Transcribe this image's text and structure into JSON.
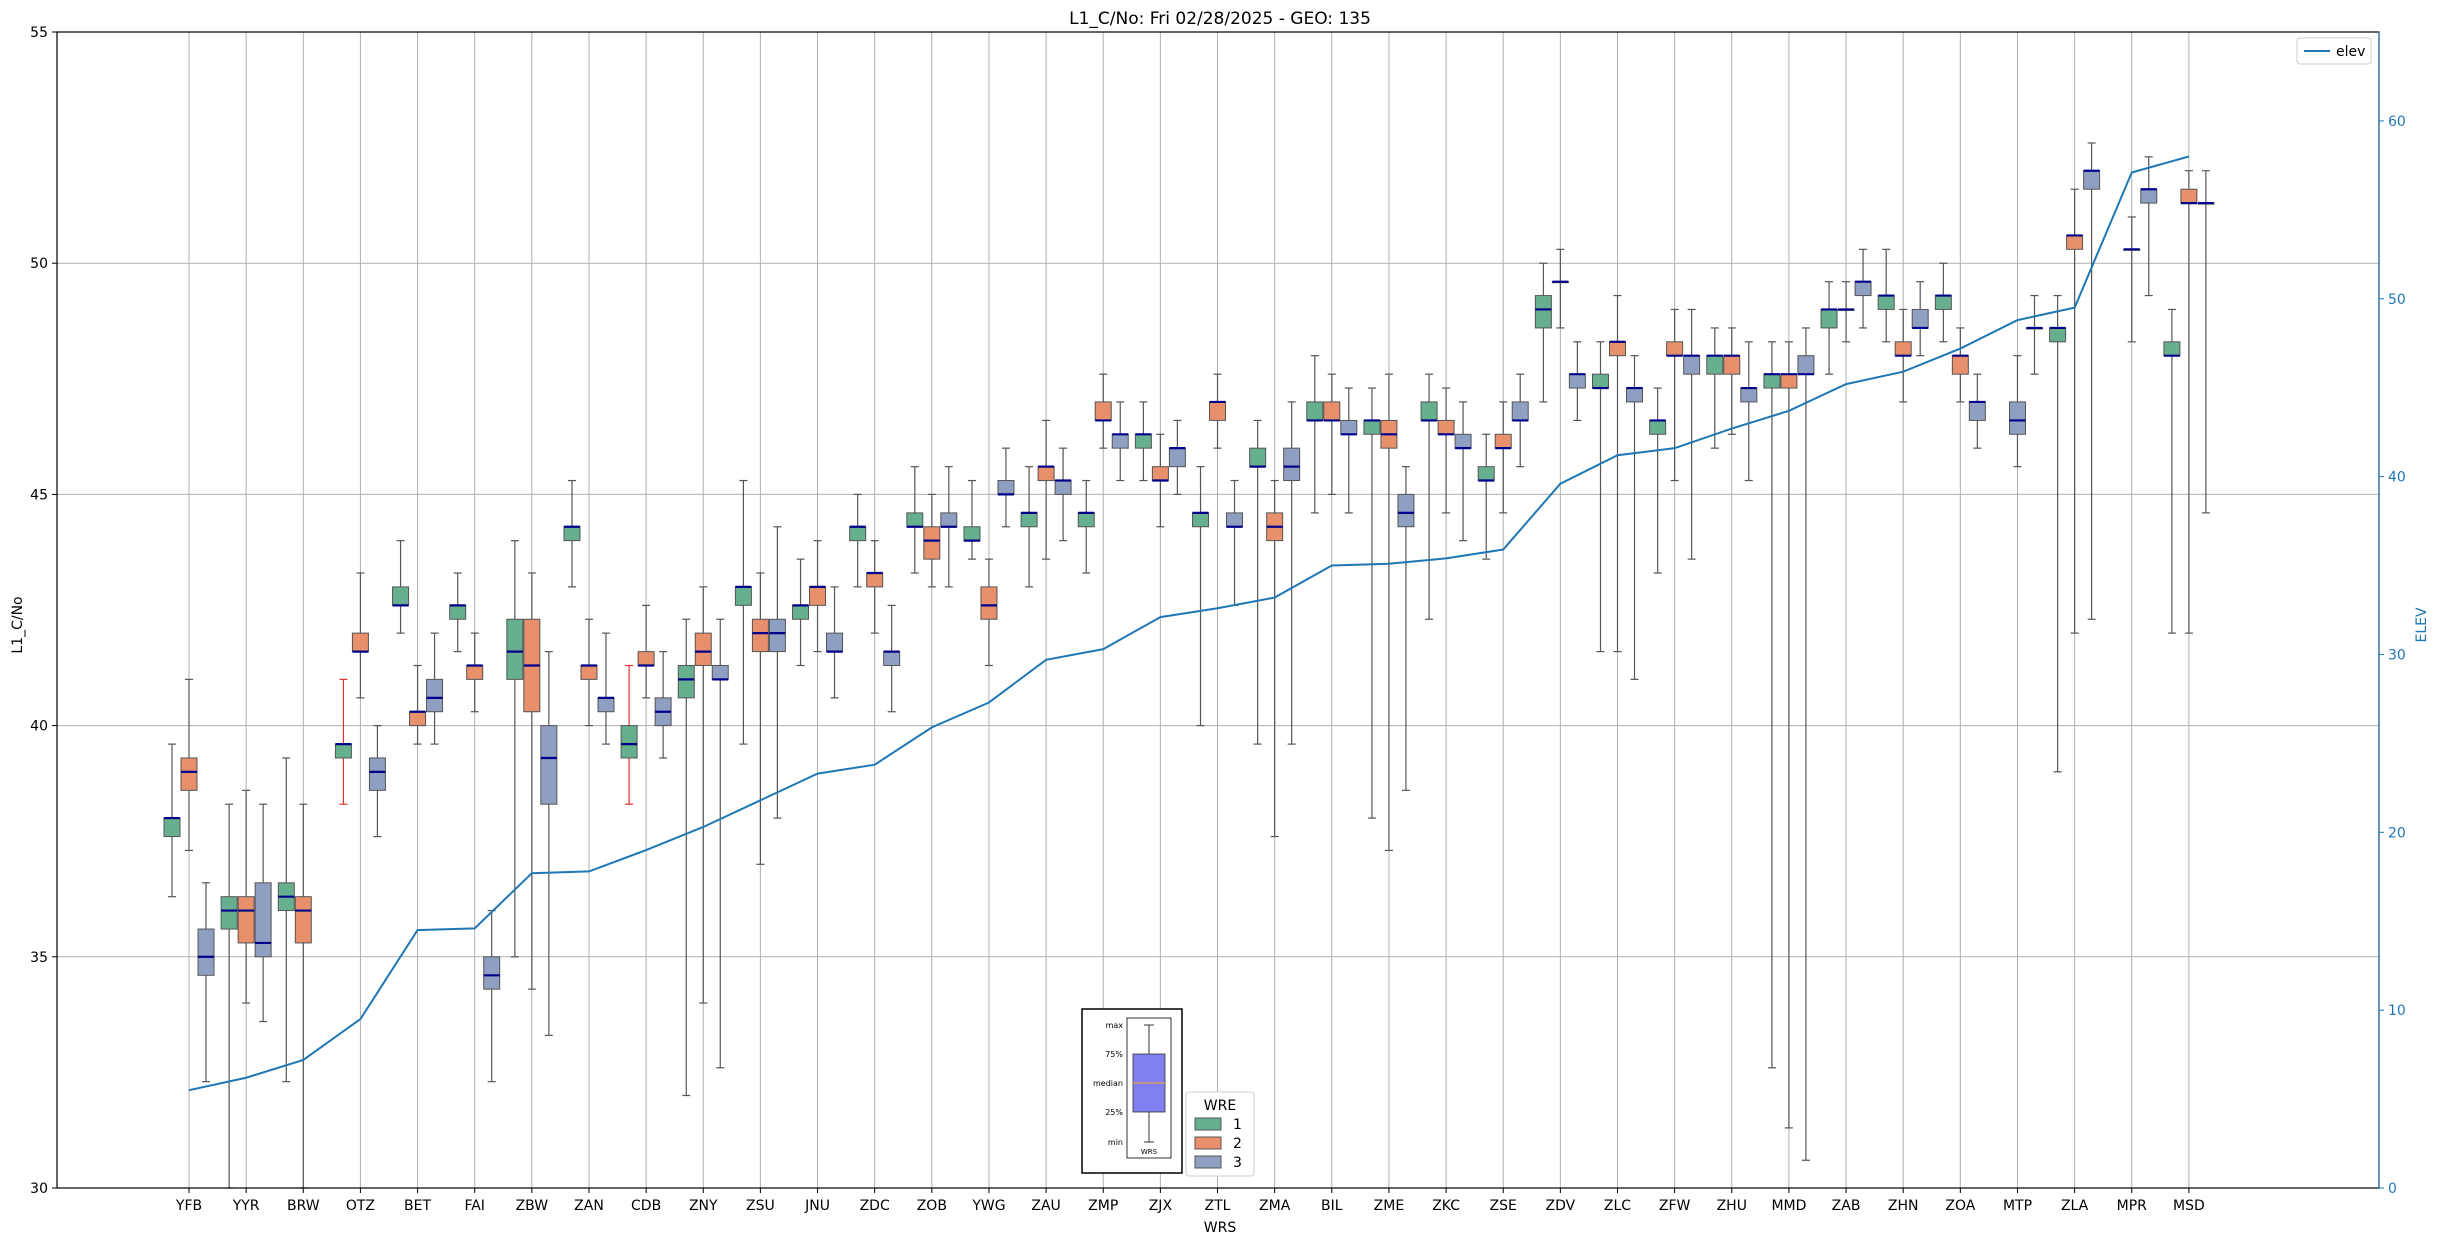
{
  "chart_data": {
    "type": "box",
    "title": "L1_C/No: Fri 02/28/2025 - GEO: 135",
    "xlabel": "WRS",
    "ylabel": "L1_C/No",
    "y2label": "ELEV",
    "ylim": [
      30,
      55
    ],
    "y2lim": [
      0,
      65
    ],
    "yticks": [
      30,
      35,
      40,
      45,
      50,
      55
    ],
    "y2ticks": [
      0,
      10,
      20,
      30,
      40,
      50,
      60
    ],
    "grid": true,
    "categories": [
      "YFB",
      "YYR",
      "BRW",
      "OTZ",
      "BET",
      "FAI",
      "ZBW",
      "ZAN",
      "CDB",
      "ZNY",
      "ZSU",
      "JNU",
      "ZDC",
      "ZOB",
      "YWG",
      "ZAU",
      "ZMP",
      "ZJX",
      "ZTL",
      "ZMA",
      "BIL",
      "ZME",
      "ZKC",
      "ZSE",
      "ZDV",
      "ZLC",
      "ZFW",
      "ZHU",
      "MMD",
      "ZAB",
      "ZHN",
      "ZOA",
      "MTP",
      "ZLA",
      "MPR",
      "MSD"
    ],
    "legend": {
      "title": "WRE",
      "placement": "bottom-center",
      "items": [
        {
          "label": "1",
          "color": "#66b08f"
        },
        {
          "label": "2",
          "color": "#e8906c"
        },
        {
          "label": "3",
          "color": "#8f9fc2"
        }
      ]
    },
    "elev_legend": {
      "label": "elev",
      "placement": "top-right",
      "color": "#1f77b4"
    },
    "key_box": {
      "labels": [
        "max",
        "75%",
        "median",
        "25%",
        "min"
      ],
      "xlabel": "WRS"
    },
    "elev_series": {
      "name": "elev",
      "values": [
        5.5,
        6.2,
        7.2,
        9.5,
        14.5,
        14.6,
        17.7,
        17.8,
        19.0,
        20.3,
        21.8,
        23.3,
        23.8,
        25.9,
        27.3,
        29.7,
        30.3,
        32.1,
        32.6,
        33.2,
        35.0,
        35.1,
        35.4,
        35.9,
        39.6,
        41.2,
        41.6,
        42.7,
        43.7,
        45.2,
        45.9,
        47.2,
        48.8,
        49.5,
        57.1,
        58.0
      ]
    },
    "boxes": [
      {
        "cat": "YFB",
        "wre": 1,
        "min": 36.3,
        "q1": 37.6,
        "med": 38.0,
        "q3": 38.0,
        "max": 39.6
      },
      {
        "cat": "YFB",
        "wre": 2,
        "min": 37.3,
        "q1": 38.6,
        "med": 39.0,
        "q3": 39.3,
        "max": 41.0
      },
      {
        "cat": "YFB",
        "wre": 3,
        "min": 32.3,
        "q1": 34.6,
        "med": 35.0,
        "q3": 35.6,
        "max": 36.6
      },
      {
        "cat": "YYR",
        "wre": 1,
        "min": 30.0,
        "q1": 35.6,
        "med": 36.0,
        "q3": 36.3,
        "max": 38.3
      },
      {
        "cat": "YYR",
        "wre": 2,
        "min": 34.0,
        "q1": 35.3,
        "med": 36.0,
        "q3": 36.3,
        "max": 38.6
      },
      {
        "cat": "YYR",
        "wre": 3,
        "min": 33.6,
        "q1": 35.0,
        "med": 35.3,
        "q3": 36.6,
        "max": 38.3
      },
      {
        "cat": "BRW",
        "wre": 1,
        "min": 32.3,
        "q1": 36.0,
        "med": 36.3,
        "q3": 36.6,
        "max": 39.3
      },
      {
        "cat": "BRW",
        "wre": 2,
        "min": 30.0,
        "q1": 35.3,
        "med": 36.0,
        "q3": 36.3,
        "max": 38.3
      },
      {
        "cat": "OTZ",
        "wre": 1,
        "min": 38.3,
        "q1": 39.3,
        "med": 39.6,
        "q3": 39.6,
        "max": 41.0,
        "whisker": "red"
      },
      {
        "cat": "OTZ",
        "wre": 2,
        "min": 40.6,
        "q1": 41.6,
        "med": 41.6,
        "q3": 42.0,
        "max": 43.3
      },
      {
        "cat": "OTZ",
        "wre": 3,
        "min": 37.6,
        "q1": 38.6,
        "med": 39.0,
        "q3": 39.3,
        "max": 40.0
      },
      {
        "cat": "BET",
        "wre": 1,
        "min": 42.0,
        "q1": 42.6,
        "med": 42.6,
        "q3": 43.0,
        "max": 44.0
      },
      {
        "cat": "BET",
        "wre": 2,
        "min": 39.6,
        "q1": 40.0,
        "med": 40.3,
        "q3": 40.3,
        "max": 41.3
      },
      {
        "cat": "BET",
        "wre": 3,
        "min": 39.6,
        "q1": 40.3,
        "med": 40.6,
        "q3": 41.0,
        "max": 42.0
      },
      {
        "cat": "FAI",
        "wre": 1,
        "min": 41.6,
        "q1": 42.3,
        "med": 42.6,
        "q3": 42.6,
        "max": 43.3
      },
      {
        "cat": "FAI",
        "wre": 2,
        "min": 40.3,
        "q1": 41.0,
        "med": 41.3,
        "q3": 41.3,
        "max": 42.0
      },
      {
        "cat": "FAI",
        "wre": 3,
        "min": 32.3,
        "q1": 34.3,
        "med": 34.6,
        "q3": 35.0,
        "max": 36.0
      },
      {
        "cat": "ZBW",
        "wre": 1,
        "min": 35.0,
        "q1": 41.0,
        "med": 41.6,
        "q3": 42.3,
        "max": 44.0
      },
      {
        "cat": "ZBW",
        "wre": 2,
        "min": 34.3,
        "q1": 40.3,
        "med": 41.3,
        "q3": 42.3,
        "max": 43.3
      },
      {
        "cat": "ZBW",
        "wre": 3,
        "min": 33.3,
        "q1": 38.3,
        "med": 39.3,
        "q3": 40.0,
        "max": 41.6
      },
      {
        "cat": "ZAN",
        "wre": 1,
        "min": 43.0,
        "q1": 44.0,
        "med": 44.3,
        "q3": 44.3,
        "max": 45.3
      },
      {
        "cat": "ZAN",
        "wre": 2,
        "min": 40.0,
        "q1": 41.0,
        "med": 41.3,
        "q3": 41.3,
        "max": 42.3
      },
      {
        "cat": "ZAN",
        "wre": 3,
        "min": 39.6,
        "q1": 40.3,
        "med": 40.6,
        "q3": 40.6,
        "max": 42.0
      },
      {
        "cat": "CDB",
        "wre": 1,
        "min": 38.3,
        "q1": 39.3,
        "med": 39.6,
        "q3": 40.0,
        "max": 41.3,
        "whisker": "red"
      },
      {
        "cat": "CDB",
        "wre": 2,
        "min": 40.6,
        "q1": 41.3,
        "med": 41.3,
        "q3": 41.6,
        "max": 42.6
      },
      {
        "cat": "CDB",
        "wre": 3,
        "min": 39.3,
        "q1": 40.0,
        "med": 40.3,
        "q3": 40.6,
        "max": 41.6
      },
      {
        "cat": "ZNY",
        "wre": 1,
        "min": 32.0,
        "q1": 40.6,
        "med": 41.0,
        "q3": 41.3,
        "max": 42.3
      },
      {
        "cat": "ZNY",
        "wre": 2,
        "min": 34.0,
        "q1": 41.3,
        "med": 41.6,
        "q3": 42.0,
        "max": 43.0
      },
      {
        "cat": "ZNY",
        "wre": 3,
        "min": 32.6,
        "q1": 41.0,
        "med": 41.0,
        "q3": 41.3,
        "max": 42.3
      },
      {
        "cat": "ZSU",
        "wre": 1,
        "min": 39.6,
        "q1": 42.6,
        "med": 43.0,
        "q3": 43.0,
        "max": 45.3
      },
      {
        "cat": "ZSU",
        "wre": 2,
        "min": 37.0,
        "q1": 41.6,
        "med": 42.0,
        "q3": 42.3,
        "max": 43.3
      },
      {
        "cat": "ZSU",
        "wre": 3,
        "min": 38.0,
        "q1": 41.6,
        "med": 42.0,
        "q3": 42.3,
        "max": 44.3
      },
      {
        "cat": "JNU",
        "wre": 1,
        "min": 41.3,
        "q1": 42.3,
        "med": 42.6,
        "q3": 42.6,
        "max": 43.6
      },
      {
        "cat": "JNU",
        "wre": 2,
        "min": 41.6,
        "q1": 42.6,
        "med": 43.0,
        "q3": 43.0,
        "max": 44.0
      },
      {
        "cat": "JNU",
        "wre": 3,
        "min": 40.6,
        "q1": 41.6,
        "med": 41.6,
        "q3": 42.0,
        "max": 43.0
      },
      {
        "cat": "ZDC",
        "wre": 1,
        "min": 43.0,
        "q1": 44.0,
        "med": 44.3,
        "q3": 44.3,
        "max": 45.0
      },
      {
        "cat": "ZDC",
        "wre": 2,
        "min": 42.0,
        "q1": 43.0,
        "med": 43.3,
        "q3": 43.3,
        "max": 44.0
      },
      {
        "cat": "ZDC",
        "wre": 3,
        "min": 40.3,
        "q1": 41.3,
        "med": 41.6,
        "q3": 41.6,
        "max": 42.6
      },
      {
        "cat": "ZOB",
        "wre": 1,
        "min": 43.3,
        "q1": 44.3,
        "med": 44.3,
        "q3": 44.6,
        "max": 45.6
      },
      {
        "cat": "ZOB",
        "wre": 2,
        "min": 43.0,
        "q1": 43.6,
        "med": 44.0,
        "q3": 44.3,
        "max": 45.0
      },
      {
        "cat": "ZOB",
        "wre": 3,
        "min": 43.0,
        "q1": 44.3,
        "med": 44.3,
        "q3": 44.6,
        "max": 45.6
      },
      {
        "cat": "YWG",
        "wre": 1,
        "min": 43.6,
        "q1": 44.0,
        "med": 44.0,
        "q3": 44.3,
        "max": 45.3
      },
      {
        "cat": "YWG",
        "wre": 2,
        "min": 41.3,
        "q1": 42.3,
        "med": 42.6,
        "q3": 43.0,
        "max": 43.6
      },
      {
        "cat": "YWG",
        "wre": 3,
        "min": 44.3,
        "q1": 45.0,
        "med": 45.0,
        "q3": 45.3,
        "max": 46.0
      },
      {
        "cat": "ZAU",
        "wre": 1,
        "min": 43.0,
        "q1": 44.3,
        "med": 44.6,
        "q3": 44.6,
        "max": 45.6
      },
      {
        "cat": "ZAU",
        "wre": 2,
        "min": 43.6,
        "q1": 45.3,
        "med": 45.6,
        "q3": 45.6,
        "max": 46.6
      },
      {
        "cat": "ZAU",
        "wre": 3,
        "min": 44.0,
        "q1": 45.0,
        "med": 45.3,
        "q3": 45.3,
        "max": 46.0
      },
      {
        "cat": "ZMP",
        "wre": 1,
        "min": 43.3,
        "q1": 44.3,
        "med": 44.6,
        "q3": 44.6,
        "max": 45.3
      },
      {
        "cat": "ZMP",
        "wre": 2,
        "min": 46.0,
        "q1": 46.6,
        "med": 46.6,
        "q3": 47.0,
        "max": 47.6
      },
      {
        "cat": "ZMP",
        "wre": 3,
        "min": 45.3,
        "q1": 46.0,
        "med": 46.3,
        "q3": 46.3,
        "max": 47.0
      },
      {
        "cat": "ZJX",
        "wre": 1,
        "min": 45.3,
        "q1": 46.0,
        "med": 46.3,
        "q3": 46.3,
        "max": 47.0
      },
      {
        "cat": "ZJX",
        "wre": 2,
        "min": 44.3,
        "q1": 45.3,
        "med": 45.3,
        "q3": 45.6,
        "max": 46.3
      },
      {
        "cat": "ZJX",
        "wre": 3,
        "min": 45.0,
        "q1": 45.6,
        "med": 46.0,
        "q3": 46.0,
        "max": 46.6
      },
      {
        "cat": "ZTL",
        "wre": 1,
        "min": 40.0,
        "q1": 44.3,
        "med": 44.6,
        "q3": 44.6,
        "max": 45.6
      },
      {
        "cat": "ZTL",
        "wre": 2,
        "min": 46.0,
        "q1": 46.6,
        "med": 47.0,
        "q3": 47.0,
        "max": 47.6
      },
      {
        "cat": "ZTL",
        "wre": 3,
        "min": 42.6,
        "q1": 44.3,
        "med": 44.3,
        "q3": 44.6,
        "max": 45.3
      },
      {
        "cat": "ZMA",
        "wre": 1,
        "min": 39.6,
        "q1": 45.6,
        "med": 45.6,
        "q3": 46.0,
        "max": 46.6
      },
      {
        "cat": "ZMA",
        "wre": 2,
        "min": 37.6,
        "q1": 44.0,
        "med": 44.3,
        "q3": 44.6,
        "max": 45.3
      },
      {
        "cat": "ZMA",
        "wre": 3,
        "min": 39.6,
        "q1": 45.3,
        "med": 45.6,
        "q3": 46.0,
        "max": 47.0
      },
      {
        "cat": "BIL",
        "wre": 1,
        "min": 44.6,
        "q1": 46.6,
        "med": 46.6,
        "q3": 47.0,
        "max": 48.0
      },
      {
        "cat": "BIL",
        "wre": 2,
        "min": 45.0,
        "q1": 46.6,
        "med": 46.6,
        "q3": 47.0,
        "max": 47.6
      },
      {
        "cat": "BIL",
        "wre": 3,
        "min": 44.6,
        "q1": 46.3,
        "med": 46.3,
        "q3": 46.6,
        "max": 47.3
      },
      {
        "cat": "ZME",
        "wre": 1,
        "min": 38.0,
        "q1": 46.3,
        "med": 46.6,
        "q3": 46.6,
        "max": 47.3
      },
      {
        "cat": "ZME",
        "wre": 2,
        "min": 37.3,
        "q1": 46.0,
        "med": 46.3,
        "q3": 46.6,
        "max": 47.6
      },
      {
        "cat": "ZME",
        "wre": 3,
        "min": 38.6,
        "q1": 44.3,
        "med": 44.6,
        "q3": 45.0,
        "max": 45.6
      },
      {
        "cat": "ZKC",
        "wre": 1,
        "min": 42.3,
        "q1": 46.6,
        "med": 46.6,
        "q3": 47.0,
        "max": 47.6
      },
      {
        "cat": "ZKC",
        "wre": 2,
        "min": 44.6,
        "q1": 46.3,
        "med": 46.3,
        "q3": 46.6,
        "max": 47.3
      },
      {
        "cat": "ZKC",
        "wre": 3,
        "min": 44.0,
        "q1": 46.0,
        "med": 46.0,
        "q3": 46.3,
        "max": 47.0
      },
      {
        "cat": "ZSE",
        "wre": 1,
        "min": 43.6,
        "q1": 45.3,
        "med": 45.3,
        "q3": 45.6,
        "max": 46.3
      },
      {
        "cat": "ZSE",
        "wre": 2,
        "min": 44.6,
        "q1": 46.0,
        "med": 46.0,
        "q3": 46.3,
        "max": 47.0
      },
      {
        "cat": "ZSE",
        "wre": 3,
        "min": 45.6,
        "q1": 46.6,
        "med": 46.6,
        "q3": 47.0,
        "max": 47.6
      },
      {
        "cat": "ZDV",
        "wre": 1,
        "min": 47.0,
        "q1": 48.6,
        "med": 49.0,
        "q3": 49.3,
        "max": 50.0
      },
      {
        "cat": "ZDV",
        "wre": 2,
        "min": 48.6,
        "q1": 49.6,
        "med": 49.6,
        "q3": 49.6,
        "max": 50.3
      },
      {
        "cat": "ZDV",
        "wre": 3,
        "min": 46.6,
        "q1": 47.3,
        "med": 47.6,
        "q3": 47.6,
        "max": 48.3
      },
      {
        "cat": "ZLC",
        "wre": 1,
        "min": 41.6,
        "q1": 47.3,
        "med": 47.3,
        "q3": 47.6,
        "max": 48.3
      },
      {
        "cat": "ZLC",
        "wre": 2,
        "min": 41.6,
        "q1": 48.0,
        "med": 48.3,
        "q3": 48.3,
        "max": 49.3
      },
      {
        "cat": "ZLC",
        "wre": 3,
        "min": 41.0,
        "q1": 47.0,
        "med": 47.3,
        "q3": 47.3,
        "max": 48.0
      },
      {
        "cat": "ZFW",
        "wre": 1,
        "min": 43.3,
        "q1": 46.3,
        "med": 46.6,
        "q3": 46.6,
        "max": 47.3
      },
      {
        "cat": "ZFW",
        "wre": 2,
        "min": 45.3,
        "q1": 48.0,
        "med": 48.0,
        "q3": 48.3,
        "max": 49.0
      },
      {
        "cat": "ZFW",
        "wre": 3,
        "min": 43.6,
        "q1": 47.6,
        "med": 48.0,
        "q3": 48.0,
        "max": 49.0
      },
      {
        "cat": "ZHU",
        "wre": 1,
        "min": 46.0,
        "q1": 47.6,
        "med": 48.0,
        "q3": 48.0,
        "max": 48.6
      },
      {
        "cat": "ZHU",
        "wre": 2,
        "min": 46.3,
        "q1": 47.6,
        "med": 48.0,
        "q3": 48.0,
        "max": 48.6
      },
      {
        "cat": "ZHU",
        "wre": 3,
        "min": 45.3,
        "q1": 47.0,
        "med": 47.3,
        "q3": 47.3,
        "max": 48.3
      },
      {
        "cat": "MMD",
        "wre": 1,
        "min": 32.6,
        "q1": 47.3,
        "med": 47.6,
        "q3": 47.6,
        "max": 48.3
      },
      {
        "cat": "MMD",
        "wre": 2,
        "min": 31.3,
        "q1": 47.3,
        "med": 47.6,
        "q3": 47.6,
        "max": 48.3
      },
      {
        "cat": "MMD",
        "wre": 3,
        "min": 30.6,
        "q1": 47.6,
        "med": 47.6,
        "q3": 48.0,
        "max": 48.6
      },
      {
        "cat": "ZAB",
        "wre": 1,
        "min": 47.6,
        "q1": 48.6,
        "med": 49.0,
        "q3": 49.0,
        "max": 49.6
      },
      {
        "cat": "ZAB",
        "wre": 2,
        "min": 48.3,
        "q1": 49.0,
        "med": 49.0,
        "q3": 49.0,
        "max": 49.6
      },
      {
        "cat": "ZAB",
        "wre": 3,
        "min": 48.6,
        "q1": 49.3,
        "med": 49.6,
        "q3": 49.6,
        "max": 50.3
      },
      {
        "cat": "ZHN",
        "wre": 1,
        "min": 48.3,
        "q1": 49.0,
        "med": 49.3,
        "q3": 49.3,
        "max": 50.3
      },
      {
        "cat": "ZHN",
        "wre": 2,
        "min": 47.0,
        "q1": 48.0,
        "med": 48.0,
        "q3": 48.3,
        "max": 49.0
      },
      {
        "cat": "ZHN",
        "wre": 3,
        "min": 48.0,
        "q1": 48.6,
        "med": 48.6,
        "q3": 49.0,
        "max": 49.6
      },
      {
        "cat": "ZOA",
        "wre": 1,
        "min": 48.3,
        "q1": 49.0,
        "med": 49.3,
        "q3": 49.3,
        "max": 50.0
      },
      {
        "cat": "ZOA",
        "wre": 2,
        "min": 47.0,
        "q1": 47.6,
        "med": 48.0,
        "q3": 48.0,
        "max": 48.6
      },
      {
        "cat": "ZOA",
        "wre": 3,
        "min": 46.0,
        "q1": 46.6,
        "med": 47.0,
        "q3": 47.0,
        "max": 47.6
      },
      {
        "cat": "MTP",
        "wre": 3,
        "min": 47.6,
        "q1": 48.6,
        "med": 48.6,
        "q3": 48.6,
        "max": 49.3
      },
      {
        "cat": "MTP",
        "wre": 3,
        "min": 45.6,
        "q1": 46.3,
        "med": 46.6,
        "q3": 47.0,
        "max": 48.0
      },
      {
        "cat": "ZLA",
        "wre": 1,
        "min": 39.0,
        "q1": 48.3,
        "med": 48.6,
        "q3": 48.6,
        "max": 49.3
      },
      {
        "cat": "ZLA",
        "wre": 2,
        "min": 42.0,
        "q1": 50.3,
        "med": 50.6,
        "q3": 50.6,
        "max": 51.6
      },
      {
        "cat": "ZLA",
        "wre": 3,
        "min": 42.3,
        "q1": 51.6,
        "med": 52.0,
        "q3": 52.0,
        "max": 52.6
      },
      {
        "cat": "MPR",
        "wre": 2,
        "min": 48.3,
        "q1": 50.3,
        "med": 50.3,
        "q3": 50.3,
        "max": 51.0
      },
      {
        "cat": "MPR",
        "wre": 3,
        "min": 49.3,
        "q1": 51.3,
        "med": 51.6,
        "q3": 51.6,
        "max": 52.3
      },
      {
        "cat": "MSD",
        "wre": 1,
        "min": 42.0,
        "q1": 48.0,
        "med": 48.0,
        "q3": 48.3,
        "max": 49.0
      },
      {
        "cat": "MSD",
        "wre": 2,
        "min": 42.0,
        "q1": 51.3,
        "med": 51.3,
        "q3": 51.6,
        "max": 52.0
      },
      {
        "cat": "MSD",
        "wre": 3,
        "min": 44.6,
        "q1": 51.3,
        "med": 51.3,
        "q3": 51.3,
        "max": 52.0
      }
    ]
  }
}
